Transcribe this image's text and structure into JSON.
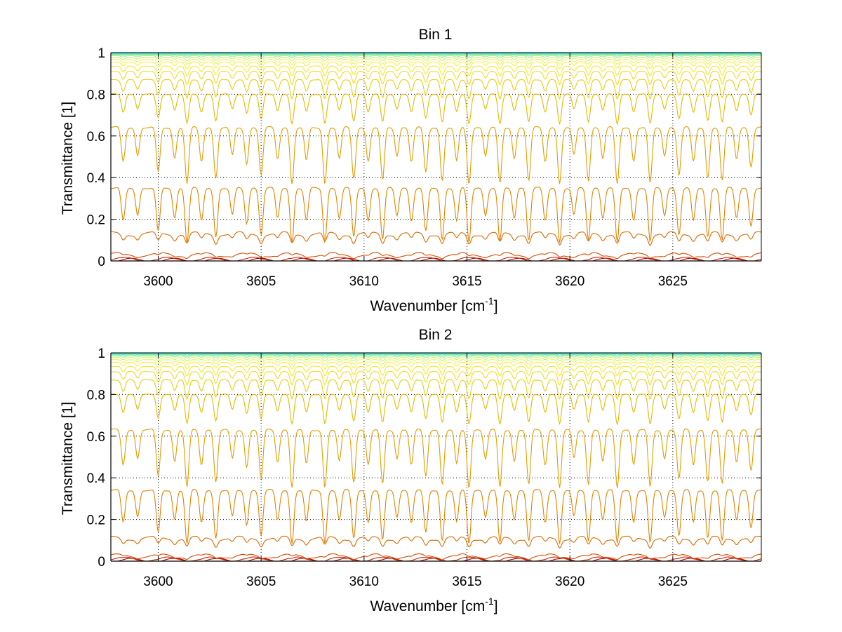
{
  "chart_data": [
    {
      "type": "line",
      "title": "Bin 1",
      "xlabel": "Wavenumber [cm",
      "xlabel_sup": "-1",
      "xlabel_tail": "]",
      "ylabel": "Transmittance [1]",
      "xlim": [
        3597.7,
        3629.3
      ],
      "ylim": [
        0,
        1
      ],
      "xticks": [
        3600,
        3605,
        3610,
        3615,
        3620,
        3625
      ],
      "xtick_labels": [
        "3600",
        "3605",
        "3610",
        "3615",
        "3620",
        "3625"
      ],
      "yticks": [
        0,
        0.2,
        0.4,
        0.6,
        0.8,
        1
      ],
      "ytick_labels": [
        "0",
        "0.2",
        "0.4",
        "0.6",
        "0.8",
        "1"
      ],
      "grid": true,
      "legend": "none",
      "colormap": "jet",
      "baselines": [
        0.003,
        0.008,
        0.03,
        0.13,
        0.35,
        0.64,
        0.8,
        0.87,
        0.91,
        0.935,
        0.955,
        0.967,
        0.977,
        0.985,
        0.99,
        0.994,
        0.997,
        0.999
      ],
      "colors": [
        "#b00000",
        "#cc2200",
        "#d64c00",
        "#dc6a00",
        "#e08400",
        "#e49c00",
        "#e8b800",
        "#eccc10",
        "#f0dc20",
        "#f4e830",
        "#f4f040",
        "#e8f460",
        "#c8f070",
        "#a8ee80",
        "#80ea98",
        "#58e2b8",
        "#38dad0",
        "#20cce0"
      ]
    },
    {
      "type": "line",
      "title": "Bin 2",
      "xlabel": "Wavenumber [cm",
      "xlabel_sup": "-1",
      "xlabel_tail": "]",
      "ylabel": "Transmittance [1]",
      "xlim": [
        3597.7,
        3629.3
      ],
      "ylim": [
        0,
        1
      ],
      "xticks": [
        3600,
        3605,
        3610,
        3615,
        3620,
        3625
      ],
      "xtick_labels": [
        "3600",
        "3605",
        "3610",
        "3615",
        "3620",
        "3625"
      ],
      "yticks": [
        0,
        0.2,
        0.4,
        0.6,
        0.8,
        1
      ],
      "ytick_labels": [
        "0",
        "0.2",
        "0.4",
        "0.6",
        "0.8",
        "1"
      ],
      "grid": true,
      "legend": "none",
      "colormap": "jet",
      "baselines": [
        0.004,
        0.01,
        0.025,
        0.11,
        0.34,
        0.63,
        0.8,
        0.87,
        0.91,
        0.935,
        0.955,
        0.967,
        0.977,
        0.985,
        0.99,
        0.994,
        0.997,
        0.999
      ],
      "colors": [
        "#b00000",
        "#cc2200",
        "#d64c00",
        "#dc6a00",
        "#e08400",
        "#e49c00",
        "#e8b800",
        "#eccc10",
        "#f0dc20",
        "#f4e830",
        "#f4f040",
        "#e8f460",
        "#c8f070",
        "#a8ee80",
        "#80ea98",
        "#58e2b8",
        "#38dad0",
        "#20cce0"
      ]
    }
  ],
  "absorption_lines": [
    3598.3,
    3599.0,
    3600.0,
    3600.8,
    3601.4,
    3602.1,
    3602.8,
    3603.6,
    3604.3,
    3605.0,
    3605.8,
    3606.5,
    3607.2,
    3608.1,
    3608.8,
    3609.5,
    3610.2,
    3610.9,
    3611.6,
    3612.3,
    3613.0,
    3613.8,
    3614.5,
    3615.1,
    3615.9,
    3616.6,
    3617.3,
    3618.0,
    3618.8,
    3619.5,
    3620.2,
    3620.9,
    3621.6,
    3622.3,
    3623.1,
    3623.9,
    3624.6,
    3625.3,
    3626.0,
    3626.7,
    3627.4,
    3628.1,
    3628.8
  ],
  "line_strengths": [
    0.6,
    0.5,
    0.8,
    0.55,
    1.0,
    0.6,
    0.9,
    0.5,
    0.65,
    0.85,
    0.55,
    1.0,
    0.6,
    1.0,
    0.55,
    0.9,
    0.6,
    0.95,
    0.5,
    0.6,
    0.8,
    0.95,
    0.6,
    1.0,
    0.5,
    1.0,
    0.55,
    0.95,
    0.6,
    1.0,
    0.5,
    0.95,
    0.55,
    1.0,
    0.6,
    1.0,
    0.5,
    0.85,
    0.6,
    0.9,
    0.95,
    0.55,
    0.7
  ]
}
